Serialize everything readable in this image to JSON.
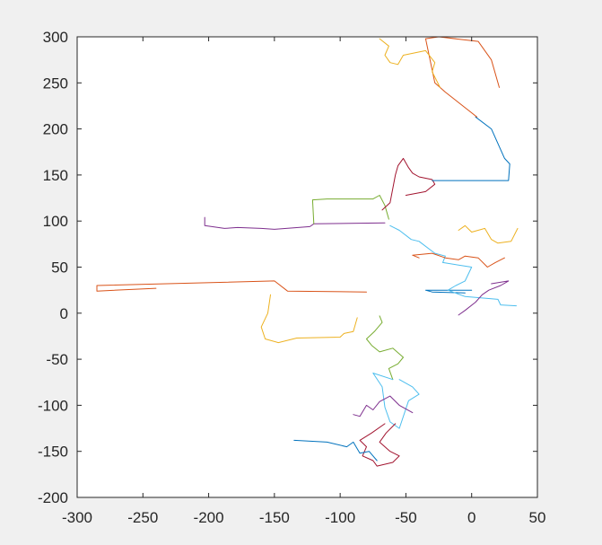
{
  "chart_data": {
    "type": "line",
    "title": "",
    "xlabel": "",
    "ylabel": "",
    "xlim": [
      -300,
      50
    ],
    "ylim": [
      -200,
      300
    ],
    "xticks": [
      "-300",
      "-250",
      "-200",
      "-150",
      "-100",
      "-50",
      "0",
      "50"
    ],
    "yticks": [
      "300",
      "250",
      "200",
      "150",
      "100",
      "50",
      "0",
      "-50",
      "-100",
      "-150",
      "-200"
    ],
    "grid": false,
    "legend": "none",
    "colors": [
      "#0072BD",
      "#D95319",
      "#EDB120",
      "#7E2F8E",
      "#77AC30",
      "#4DBEEE",
      "#A2142F"
    ],
    "series": [
      {
        "x": [
          -5,
          -30,
          -35,
          0
        ],
        "y": [
          22,
          23,
          25,
          25
        ]
      },
      {
        "x": [
          -240,
          -285,
          -285,
          -150,
          -140,
          -80
        ],
        "y": [
          27,
          24,
          30,
          35,
          24,
          23
        ]
      },
      {
        "x": [
          -153,
          -155,
          -160,
          -157,
          -147,
          -133,
          -100,
          -97,
          -90,
          -87
        ],
        "y": [
          20,
          0,
          -15,
          -28,
          -32,
          -27,
          -26,
          -22,
          -20,
          -5
        ]
      },
      {
        "x": [
          -203,
          -203,
          -188,
          -178,
          -160,
          -150,
          -123,
          -120,
          -66
        ],
        "y": [
          104,
          95,
          92,
          93,
          92,
          91,
          94,
          97,
          98
        ]
      },
      {
        "x": [
          -120,
          -121,
          -110,
          -75,
          -70,
          -66,
          -63
        ],
        "y": [
          97,
          123,
          124,
          124,
          128,
          117,
          102
        ]
      },
      {
        "x": [
          -62,
          -55,
          -46,
          -40,
          -28,
          -20,
          -22,
          0,
          -5,
          -12,
          -18,
          -5,
          20,
          22,
          34
        ],
        "y": [
          95,
          90,
          80,
          78,
          65,
          62,
          55,
          50,
          35,
          30,
          25,
          18,
          15,
          9,
          8
        ]
      },
      {
        "x": [
          -68,
          -62,
          -58,
          -56,
          -52,
          -48,
          -45,
          -40,
          -30,
          -28,
          -35,
          -50
        ],
        "y": [
          112,
          120,
          150,
          160,
          168,
          158,
          152,
          148,
          145,
          140,
          132,
          128
        ]
      },
      {
        "x": [
          -30,
          28,
          29,
          25,
          15,
          3
        ],
        "y": [
          144,
          144,
          162,
          168,
          200,
          213
        ]
      },
      {
        "x": [
          4,
          -20,
          -28,
          -35,
          -25,
          5,
          15,
          21
        ],
        "y": [
          213,
          240,
          250,
          298,
          300,
          295,
          275,
          245
        ]
      },
      {
        "x": [
          -70,
          -63,
          -66,
          -62,
          -56,
          -52,
          -35,
          -28,
          -30,
          -24
        ],
        "y": [
          298,
          290,
          280,
          272,
          270,
          280,
          285,
          272,
          262,
          245
        ]
      },
      {
        "x": [
          15,
          28,
          22,
          13,
          8,
          3,
          -5,
          -10
        ],
        "y": [
          32,
          35,
          30,
          25,
          20,
          12,
          3,
          -2
        ]
      },
      {
        "x": [
          -70,
          -68,
          -74,
          -80,
          -76,
          -70,
          -60,
          -52,
          -56,
          -63,
          -60
        ],
        "y": [
          -3,
          -10,
          -20,
          -28,
          -35,
          -42,
          -38,
          -48,
          -55,
          -60,
          -72
        ]
      },
      {
        "x": [
          -60,
          -75,
          -68,
          -66,
          -62,
          -55,
          -48,
          -40,
          -45,
          -55
        ],
        "y": [
          -72,
          -65,
          -80,
          -102,
          -118,
          -125,
          -95,
          -88,
          -80,
          -72
        ]
      },
      {
        "x": [
          -66,
          -76,
          -85,
          -80,
          -83,
          -75,
          -72,
          -60,
          -55,
          -62,
          -70,
          -65,
          -58
        ],
        "y": [
          -120,
          -130,
          -138,
          -145,
          -155,
          -160,
          -166,
          -162,
          -155,
          -150,
          -140,
          -130,
          -120
        ]
      },
      {
        "x": [
          -135,
          -110,
          -95,
          -90,
          -85,
          -78,
          -72
        ],
        "y": [
          -138,
          -140,
          -145,
          -140,
          -152,
          -150,
          -160
        ]
      },
      {
        "x": [
          -40,
          -45,
          -30,
          -20,
          -10,
          -5,
          5,
          12,
          18,
          25
        ],
        "y": [
          60,
          63,
          65,
          60,
          58,
          62,
          60,
          50,
          55,
          60
        ]
      },
      {
        "x": [
          -10,
          -5,
          0,
          10,
          15,
          20,
          30,
          35
        ],
        "y": [
          90,
          95,
          88,
          92,
          80,
          76,
          78,
          92
        ]
      },
      {
        "x": [
          -90,
          -85,
          -80,
          -75,
          -70,
          -62,
          -55,
          -45
        ],
        "y": [
          -110,
          -112,
          -100,
          -105,
          -96,
          -90,
          -100,
          -108
        ]
      }
    ]
  }
}
